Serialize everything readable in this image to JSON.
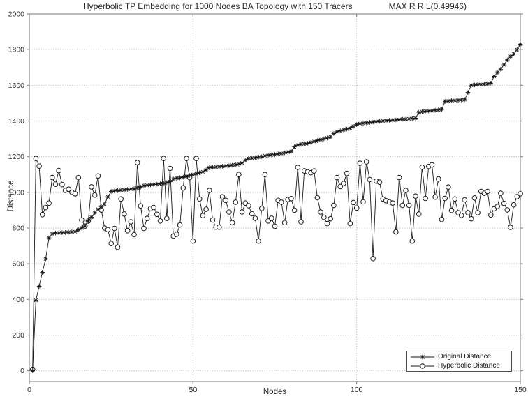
{
  "chart_data": {
    "type": "line",
    "title": "Hyperbolic TP Embedding for 1000 Nodes BA Topology with 150 Tracers",
    "title_right": "MAX R R L(0.49946)",
    "xlabel": "Nodes",
    "ylabel": "Distance",
    "xlim": [
      0,
      150
    ],
    "ylim": [
      -60,
      2000
    ],
    "xticks": [
      0,
      50,
      100,
      150
    ],
    "yticks": [
      0,
      200,
      400,
      600,
      800,
      1000,
      1200,
      1400,
      1600,
      1800,
      2000
    ],
    "grid": "dotted",
    "legend_position": "bottom-right",
    "colors": {
      "line": "#1a1a1a",
      "axis": "#8c8c8c",
      "grid": "#b5b5b5",
      "text": "#262626",
      "background": "#ffffff"
    },
    "legend": {
      "entries": [
        {
          "label": "Original Distance",
          "marker": "asterisk"
        },
        {
          "label": "Hyperbolic Distance",
          "marker": "circle"
        }
      ]
    },
    "x_start": 1,
    "x_step": 1,
    "series": [
      {
        "name": "Original Distance",
        "marker": "asterisk",
        "values": [
          0,
          395,
          474,
          552,
          627,
          745,
          768,
          772,
          773,
          774,
          775,
          776,
          778,
          780,
          790,
          800,
          812,
          840,
          860,
          885,
          905,
          920,
          935,
          975,
          1005,
          1008,
          1010,
          1012,
          1014,
          1016,
          1018,
          1020,
          1025,
          1030,
          1038,
          1040,
          1042,
          1044,
          1046,
          1048,
          1050,
          1055,
          1060,
          1075,
          1080,
          1082,
          1085,
          1090,
          1095,
          1100,
          1105,
          1110,
          1115,
          1125,
          1138,
          1140,
          1142,
          1144,
          1146,
          1148,
          1150,
          1152,
          1155,
          1158,
          1165,
          1180,
          1190,
          1192,
          1194,
          1198,
          1200,
          1205,
          1208,
          1210,
          1212,
          1215,
          1218,
          1222,
          1225,
          1230,
          1255,
          1265,
          1270,
          1272,
          1275,
          1280,
          1285,
          1290,
          1295,
          1300,
          1305,
          1310,
          1330,
          1340,
          1345,
          1350,
          1355,
          1360,
          1370,
          1380,
          1385,
          1388,
          1390,
          1392,
          1394,
          1396,
          1398,
          1400,
          1402,
          1404,
          1405,
          1406,
          1408,
          1410,
          1410,
          1412,
          1414,
          1416,
          1448,
          1452,
          1455,
          1456,
          1458,
          1460,
          1462,
          1465,
          1510,
          1512,
          1514,
          1515,
          1516,
          1518,
          1520,
          1560,
          1600,
          1602,
          1604,
          1605,
          1606,
          1608,
          1612,
          1650,
          1672,
          1690,
          1715,
          1742,
          1762,
          1775,
          1800,
          1830
        ]
      },
      {
        "name": "Hyperbolic Distance",
        "marker": "circle",
        "values": [
          8,
          1190,
          1147,
          875,
          915,
          940,
          1083,
          1046,
          1122,
          1044,
          1011,
          1018,
          1001,
          992,
          1083,
          845,
          811,
          839,
          1031,
          985,
          1092,
          901,
          800,
          791,
          713,
          798,
          692,
          963,
          879,
          785,
          835,
          763,
          1167,
          924,
          798,
          854,
          909,
          915,
          877,
          840,
          1190,
          854,
          1134,
          755,
          765,
          817,
          1025,
          1190,
          1083,
          727,
          1190,
          963,
          870,
          905,
          1011,
          845,
          805,
          805,
          975,
          955,
          890,
          830,
          945,
          1100,
          890,
          940,
          925,
          880,
          855,
          727,
          910,
          1100,
          840,
          855,
          810,
          955,
          945,
          830,
          960,
          965,
          900,
          1140,
          835,
          1120,
          1115,
          1110,
          1120,
          970,
          890,
          860,
          825,
          852,
          927,
          1083,
          1033,
          1050,
          1106,
          825,
          943,
          912,
          1163,
          947,
          1171,
          1072,
          629,
          1063,
          1057,
          963,
          953,
          947,
          940,
          778,
          1083,
          927,
          1011,
          927,
          727,
          979,
          878,
          1141,
          966,
          1145,
          1154,
          973,
          1075,
          848,
          966,
          1030,
          899,
          963,
          886,
          871,
          958,
          886,
          852,
          969,
          886,
          1005,
          995,
          1005,
          873,
          908,
          921,
          995,
          938,
          902,
          804,
          930,
          976,
          992
        ]
      }
    ]
  }
}
